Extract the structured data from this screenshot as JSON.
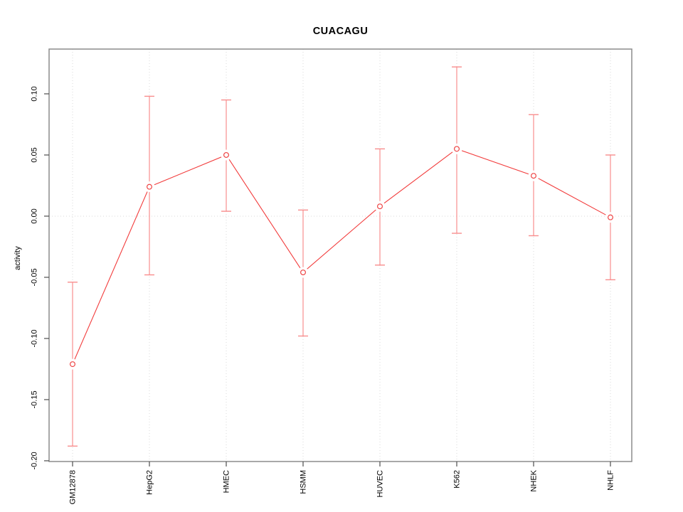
{
  "chart_data": {
    "type": "line",
    "title": "CUACAGU",
    "xlabel": "",
    "ylabel": "activity",
    "categories": [
      "GM12878",
      "HepG2",
      "HMEC",
      "HSMM",
      "HUVEC",
      "K562",
      "NHEK",
      "NHLF"
    ],
    "series": [
      {
        "name": "activity",
        "values": [
          -0.121,
          0.024,
          0.05,
          -0.046,
          0.008,
          0.055,
          0.033,
          -0.001
        ],
        "error_low": [
          -0.188,
          -0.048,
          0.004,
          -0.098,
          -0.04,
          -0.014,
          -0.016,
          -0.052
        ],
        "error_high": [
          -0.054,
          0.098,
          0.095,
          0.005,
          0.055,
          0.122,
          0.083,
          0.05
        ]
      }
    ],
    "ylim": [
      -0.2006,
      0.1366
    ],
    "yticks": [
      0.1,
      0.05,
      0.0,
      -0.05,
      -0.1,
      -0.15,
      -0.2
    ],
    "ytick_labels": [
      "0.10",
      "0.05",
      "0.00",
      "-0.05",
      "-0.10",
      "-0.15",
      "-0.20"
    ],
    "grid": {
      "vertical_at_categories": true,
      "horizontal_at_zero": true,
      "line_style": "dotted"
    },
    "legend_position": "none",
    "colors": {
      "line": "#f23b3b",
      "error_bar": "#f88e8e",
      "point_stroke": "#ee4444",
      "point_fill": "#ffffff",
      "box": "#8c8c8c",
      "tick": "#4d4d4d",
      "grid": "#d9d9d9",
      "text": "#000000",
      "background": "#ffffff"
    }
  }
}
